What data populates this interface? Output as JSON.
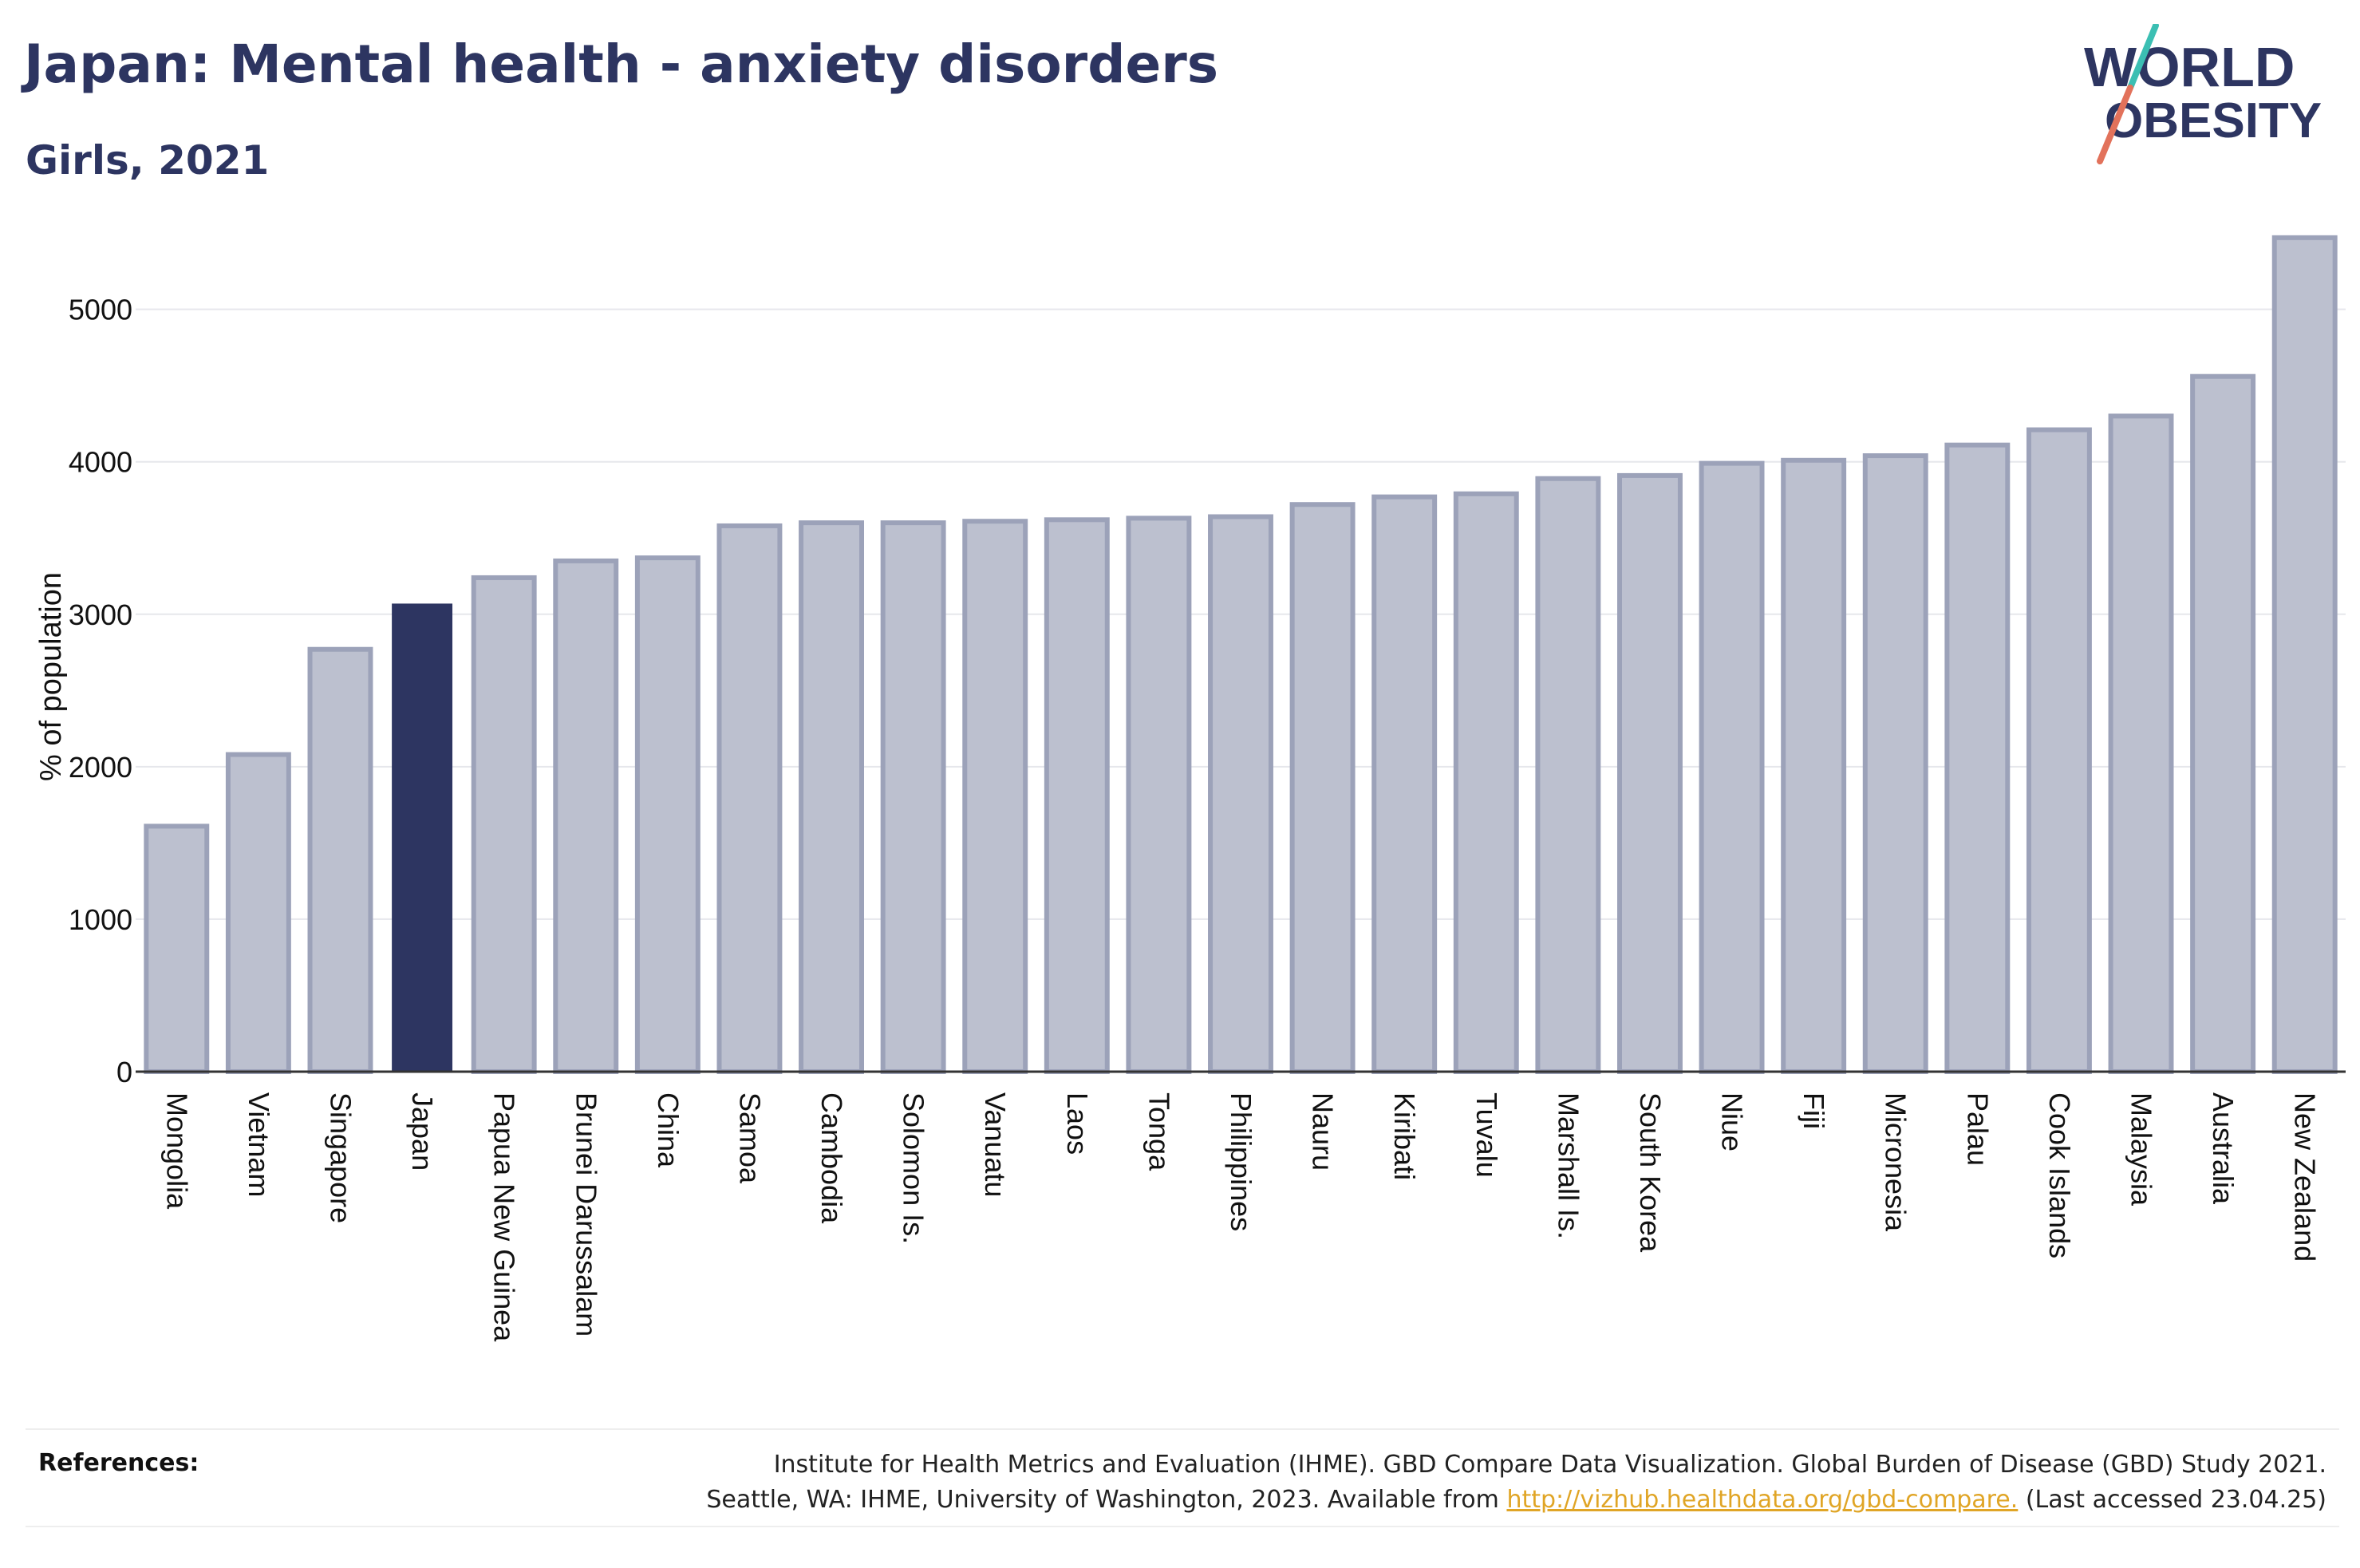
{
  "header": {
    "title": "Japan: Mental health - anxiety disorders",
    "subtitle": "Girls, 2021"
  },
  "logo": {
    "line1": "WORLD",
    "line2": "OBESITY",
    "slash_color_top": "#3bbfb3",
    "slash_color_bottom": "#e2725b"
  },
  "chart_data": {
    "type": "bar",
    "title": "Japan: Mental health - anxiety disorders",
    "subtitle": "Girls, 2021",
    "ylabel": "% of population",
    "xlabel": "",
    "ylim": [
      0,
      5600
    ],
    "yticks": [
      0,
      1000,
      2000,
      3000,
      4000,
      5000
    ],
    "grid": true,
    "highlight": "Japan",
    "colors": {
      "bar": "#bcc0cf",
      "bar_edge": "#9ca2b9",
      "highlight": "#2d3561"
    },
    "categories": [
      "Mongolia",
      "Vietnam",
      "Singapore",
      "Japan",
      "Papua New Guinea",
      "Brunei Darussalam",
      "China",
      "Samoa",
      "Cambodia",
      "Solomon Is.",
      "Vanuatu",
      "Laos",
      "Tonga",
      "Philippines",
      "Nauru",
      "Kiribati",
      "Tuvalu",
      "Marshall Is.",
      "South Korea",
      "Niue",
      "Fiji",
      "Micronesia",
      "Palau",
      "Cook Islands",
      "Malaysia",
      "Australia",
      "New Zealand"
    ],
    "values": [
      1610,
      2080,
      2770,
      3070,
      3240,
      3350,
      3370,
      3580,
      3600,
      3600,
      3610,
      3620,
      3630,
      3640,
      3720,
      3770,
      3790,
      3890,
      3910,
      3990,
      4010,
      4040,
      4110,
      4210,
      4300,
      4560,
      5470
    ]
  },
  "references": {
    "label": "References:",
    "line1": "Institute for Health Metrics and Evaluation (IHME). GBD Compare Data Visualization. Global Burden of Disease (GBD) Study 2021.",
    "line2_prefix": "Seattle, WA: IHME, University of Washington, 2023. Available from",
    "link": "http://vizhub.healthdata.org/gbd-compare.",
    "line2_suffix": "(Last accessed 23.04.25)"
  }
}
